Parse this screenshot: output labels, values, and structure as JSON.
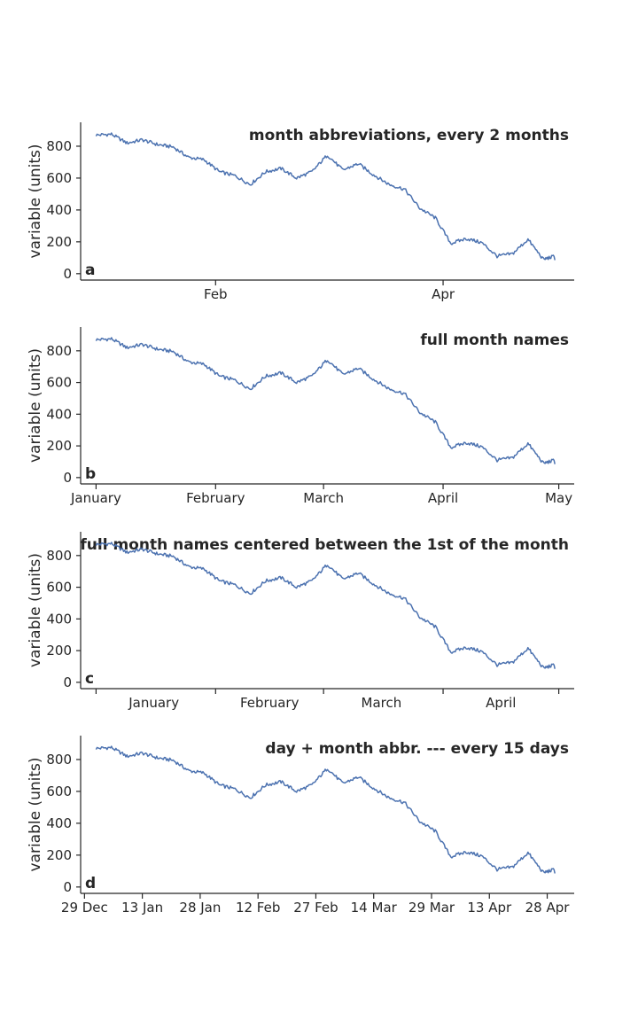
{
  "colors": {
    "series": "#4c72b0",
    "axis": "#262626",
    "background": "#ffffff"
  },
  "chart_data": [
    {
      "type": "line",
      "panel_label": "a",
      "title": "month abbreviations, every 2 months",
      "xlabel": "",
      "ylabel": "variable (units)",
      "xlim": [
        "2022-12-28",
        "2023-05-05"
      ],
      "ylim": [
        -40,
        950
      ],
      "yticks": [
        0,
        200,
        400,
        600,
        800
      ],
      "xticks": [
        {
          "date": "2023-02-01",
          "label": "Feb"
        },
        {
          "date": "2023-04-01",
          "label": "Apr"
        }
      ],
      "grid": false,
      "series": [
        {
          "x": [
            "2023-01-01",
            "2023-01-05",
            "2023-01-09",
            "2023-01-13",
            "2023-01-17",
            "2023-01-21",
            "2023-01-25",
            "2023-01-29",
            "2023-02-02",
            "2023-02-06",
            "2023-02-10",
            "2023-02-14",
            "2023-02-18",
            "2023-02-22",
            "2023-02-26",
            "2023-03-02",
            "2023-03-06",
            "2023-03-10",
            "2023-03-14",
            "2023-03-18",
            "2023-03-22",
            "2023-03-26",
            "2023-03-30",
            "2023-04-03",
            "2023-04-07",
            "2023-04-11",
            "2023-04-15",
            "2023-04-19",
            "2023-04-23",
            "2023-04-27",
            "2023-04-30"
          ],
          "y": [
            870,
            875,
            820,
            840,
            810,
            795,
            730,
            715,
            640,
            615,
            560,
            640,
            660,
            600,
            640,
            745,
            650,
            690,
            620,
            560,
            530,
            410,
            350,
            190,
            220,
            195,
            110,
            125,
            215,
            90,
            110
          ]
        }
      ]
    },
    {
      "type": "line",
      "panel_label": "b",
      "title": "full month names",
      "xlabel": "",
      "ylabel": "variable (units)",
      "xlim": [
        "2022-12-28",
        "2023-05-05"
      ],
      "ylim": [
        -40,
        950
      ],
      "yticks": [
        0,
        200,
        400,
        600,
        800
      ],
      "xticks": [
        {
          "date": "2023-01-01",
          "label": "January"
        },
        {
          "date": "2023-02-01",
          "label": "February"
        },
        {
          "date": "2023-03-01",
          "label": "March"
        },
        {
          "date": "2023-04-01",
          "label": "April"
        },
        {
          "date": "2023-05-01",
          "label": "May"
        }
      ],
      "grid": false,
      "series": [
        {
          "x": [
            "2023-01-01",
            "2023-01-05",
            "2023-01-09",
            "2023-01-13",
            "2023-01-17",
            "2023-01-21",
            "2023-01-25",
            "2023-01-29",
            "2023-02-02",
            "2023-02-06",
            "2023-02-10",
            "2023-02-14",
            "2023-02-18",
            "2023-02-22",
            "2023-02-26",
            "2023-03-02",
            "2023-03-06",
            "2023-03-10",
            "2023-03-14",
            "2023-03-18",
            "2023-03-22",
            "2023-03-26",
            "2023-03-30",
            "2023-04-03",
            "2023-04-07",
            "2023-04-11",
            "2023-04-15",
            "2023-04-19",
            "2023-04-23",
            "2023-04-27",
            "2023-04-30"
          ],
          "y": [
            870,
            875,
            820,
            840,
            810,
            795,
            730,
            715,
            640,
            615,
            560,
            640,
            660,
            600,
            640,
            745,
            650,
            690,
            620,
            560,
            530,
            410,
            350,
            190,
            220,
            195,
            110,
            125,
            215,
            90,
            110
          ]
        }
      ]
    },
    {
      "type": "line",
      "panel_label": "c",
      "title": "full month names centered between the 1st of the month",
      "xlabel": "",
      "ylabel": "variable (units)",
      "xlim": [
        "2022-12-28",
        "2023-05-05"
      ],
      "ylim": [
        -40,
        950
      ],
      "yticks": [
        0,
        200,
        400,
        600,
        800
      ],
      "xtick_marks": [
        "2023-01-01",
        "2023-02-01",
        "2023-03-01",
        "2023-04-01",
        "2023-05-01"
      ],
      "xticks": [
        {
          "date": "2023-01-16",
          "label": "January"
        },
        {
          "date": "2023-02-15",
          "label": "February"
        },
        {
          "date": "2023-03-16",
          "label": "March"
        },
        {
          "date": "2023-04-16",
          "label": "April"
        }
      ],
      "grid": false,
      "series": [
        {
          "x": [
            "2023-01-01",
            "2023-01-05",
            "2023-01-09",
            "2023-01-13",
            "2023-01-17",
            "2023-01-21",
            "2023-01-25",
            "2023-01-29",
            "2023-02-02",
            "2023-02-06",
            "2023-02-10",
            "2023-02-14",
            "2023-02-18",
            "2023-02-22",
            "2023-02-26",
            "2023-03-02",
            "2023-03-06",
            "2023-03-10",
            "2023-03-14",
            "2023-03-18",
            "2023-03-22",
            "2023-03-26",
            "2023-03-30",
            "2023-04-03",
            "2023-04-07",
            "2023-04-11",
            "2023-04-15",
            "2023-04-19",
            "2023-04-23",
            "2023-04-27",
            "2023-04-30"
          ],
          "y": [
            870,
            875,
            820,
            840,
            810,
            795,
            730,
            715,
            640,
            615,
            560,
            640,
            660,
            600,
            640,
            745,
            650,
            690,
            620,
            560,
            530,
            410,
            350,
            190,
            220,
            195,
            110,
            125,
            215,
            90,
            110
          ]
        }
      ]
    },
    {
      "type": "line",
      "panel_label": "d",
      "title": "day + month abbr. --- every 15 days",
      "xlabel": "",
      "ylabel": "variable (units)",
      "xlim": [
        "2022-12-28",
        "2023-05-05"
      ],
      "ylim": [
        -40,
        950
      ],
      "yticks": [
        0,
        200,
        400,
        600,
        800
      ],
      "xticks": [
        {
          "date": "2022-12-29",
          "label": "29 Dec"
        },
        {
          "date": "2023-01-13",
          "label": "13 Jan"
        },
        {
          "date": "2023-01-28",
          "label": "28 Jan"
        },
        {
          "date": "2023-02-12",
          "label": "12 Feb"
        },
        {
          "date": "2023-02-27",
          "label": "27 Feb"
        },
        {
          "date": "2023-03-14",
          "label": "14 Mar"
        },
        {
          "date": "2023-03-29",
          "label": "29 Mar"
        },
        {
          "date": "2023-04-13",
          "label": "13 Apr"
        },
        {
          "date": "2023-04-28",
          "label": "28 Apr"
        }
      ],
      "grid": false,
      "series": [
        {
          "x": [
            "2023-01-01",
            "2023-01-05",
            "2023-01-09",
            "2023-01-13",
            "2023-01-17",
            "2023-01-21",
            "2023-01-25",
            "2023-01-29",
            "2023-02-02",
            "2023-02-06",
            "2023-02-10",
            "2023-02-14",
            "2023-02-18",
            "2023-02-22",
            "2023-02-26",
            "2023-03-02",
            "2023-03-06",
            "2023-03-10",
            "2023-03-14",
            "2023-03-18",
            "2023-03-22",
            "2023-03-26",
            "2023-03-30",
            "2023-04-03",
            "2023-04-07",
            "2023-04-11",
            "2023-04-15",
            "2023-04-19",
            "2023-04-23",
            "2023-04-27",
            "2023-04-30"
          ],
          "y": [
            870,
            875,
            820,
            840,
            810,
            795,
            730,
            715,
            640,
            615,
            560,
            640,
            660,
            600,
            640,
            745,
            650,
            690,
            620,
            560,
            530,
            410,
            350,
            190,
            220,
            195,
            110,
            125,
            215,
            90,
            110
          ]
        }
      ]
    }
  ]
}
